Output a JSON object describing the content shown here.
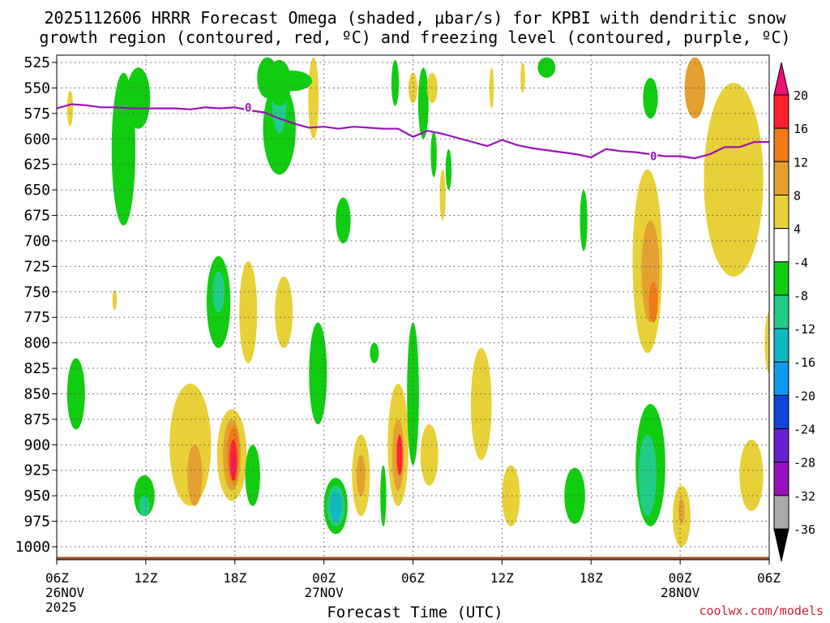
{
  "title_line_1": "2025112606 HRRR Forecast Omega (shaded, μbar/s) for KPBI with dendritic snow",
  "title_line_2": "growth region (contoured, red, ºC) and freezing level (contoured, purple, ºC)",
  "credit": "coolwx.com/models",
  "chart_data": {
    "type": "contour",
    "title": "2025112606 HRRR Forecast Omega (shaded, μbar/s) for KPBI with dendritic snow growth region (contoured, red, ºC) and freezing level (contoured, purple, ºC)",
    "xlabel": "Forecast Time (UTC)",
    "ylabel": "",
    "x_ticks": [
      {
        "hour": 0,
        "label": "06Z",
        "date": "26NOV",
        "year": "2025"
      },
      {
        "hour": 6,
        "label": "12Z"
      },
      {
        "hour": 12,
        "label": "18Z"
      },
      {
        "hour": 18,
        "label": "00Z",
        "date": "27NOV"
      },
      {
        "hour": 24,
        "label": "06Z"
      },
      {
        "hour": 30,
        "label": "12Z"
      },
      {
        "hour": 36,
        "label": "18Z"
      },
      {
        "hour": 42,
        "label": "00Z",
        "date": "28NOV"
      },
      {
        "hour": 48,
        "label": "06Z"
      }
    ],
    "xlim": [
      0,
      48
    ],
    "y_levels": [
      525,
      550,
      575,
      600,
      625,
      650,
      675,
      700,
      725,
      750,
      775,
      800,
      825,
      850,
      875,
      900,
      925,
      950,
      975,
      1000
    ],
    "ylim": [
      1010,
      520
    ],
    "colorbar": {
      "ticks": [
        20,
        16,
        12,
        8,
        4,
        -4,
        -8,
        -12,
        -16,
        -20,
        -24,
        -28,
        -32,
        -36
      ],
      "bins": [
        {
          "range": "16 to 20",
          "color": "#ff2233"
        },
        {
          "range": "12 to 16",
          "color": "#f07a18"
        },
        {
          "range": "8 to 12",
          "color": "#e4a030"
        },
        {
          "range": "4 to 8",
          "color": "#e8d038"
        },
        {
          "range": "-4 to 4",
          "color": "#ffffff"
        },
        {
          "range": "-8 to -4",
          "color": "#11cc11"
        },
        {
          "range": "-12 to -8",
          "color": "#22cc88"
        },
        {
          "range": "-16 to -12",
          "color": "#11b8c0"
        },
        {
          "range": "-20 to -16",
          "color": "#1199ee"
        },
        {
          "range": "-24 to -20",
          "color": "#1144dd"
        },
        {
          "range": "-28 to -24",
          "color": "#6622cc"
        },
        {
          "range": "-32 to -28",
          "color": "#9911bb"
        },
        {
          "range": "-36 to -32",
          "color": "#aaaaaa"
        }
      ],
      "over_color": "#ee1177",
      "under_color": "#000000"
    },
    "freezing_level": {
      "label": "0",
      "color": "#9911bb",
      "hours": [
        0,
        1,
        2,
        3,
        4,
        5,
        6,
        7,
        8,
        9,
        10,
        11,
        12,
        13,
        14,
        15,
        16,
        17,
        18,
        19,
        20,
        21,
        22,
        23,
        24,
        25,
        26,
        27,
        28,
        29,
        30,
        31,
        32,
        33,
        34,
        35,
        36,
        37,
        38,
        39,
        40,
        41,
        42,
        43,
        44,
        45,
        46,
        47,
        48
      ],
      "pressure": [
        570,
        566,
        567,
        569,
        569,
        570,
        570,
        570,
        570,
        571,
        569,
        570,
        569,
        572,
        574,
        580,
        585,
        589,
        588,
        590,
        588,
        589,
        590,
        590,
        598,
        592,
        595,
        599,
        603,
        607,
        601,
        606,
        609,
        611,
        613,
        615,
        618,
        610,
        612,
        613,
        615,
        617,
        617,
        619,
        615,
        608,
        608,
        603,
        603
      ],
      "label_positions": [
        {
          "hour": 12.9,
          "pressure": 569
        },
        {
          "hour": 40.2,
          "pressure": 617
        }
      ]
    },
    "omega_regions": [
      {
        "value": -6,
        "hour": 4.5,
        "pressure": 610,
        "dh": 0.8,
        "dp": 150
      },
      {
        "value": -6,
        "hour": 5.5,
        "pressure": 560,
        "dh": 0.8,
        "dp": 60
      },
      {
        "value": -6,
        "hour": 14.2,
        "pressure": 540,
        "dh": 0.7,
        "dp": 40
      },
      {
        "value": -6,
        "hour": 15.0,
        "pressure": 590,
        "dh": 1.1,
        "dp": 90
      },
      {
        "value": -10,
        "hour": 15.0,
        "pressure": 560,
        "dh": 0.5,
        "dp": 70
      },
      {
        "value": -6,
        "hour": 15.0,
        "pressure": 545,
        "dh": 0.8,
        "dp": 45
      },
      {
        "value": 6,
        "hour": 17.3,
        "pressure": 560,
        "dh": 0.35,
        "dp": 80
      },
      {
        "value": 6,
        "hour": 0.9,
        "pressure": 570,
        "dh": 0.2,
        "dp": 35
      },
      {
        "value": -6,
        "hour": 15.9,
        "pressure": 543,
        "dh": 1.3,
        "dp": 20
      },
      {
        "value": 6,
        "hour": 24.0,
        "pressure": 550,
        "dh": 0.3,
        "dp": 30
      },
      {
        "value": -6,
        "hour": 22.8,
        "pressure": 545,
        "dh": 0.25,
        "dp": 45
      },
      {
        "value": -6,
        "hour": 24.7,
        "pressure": 565,
        "dh": 0.35,
        "dp": 70
      },
      {
        "value": 6,
        "hour": 25.3,
        "pressure": 550,
        "dh": 0.35,
        "dp": 30
      },
      {
        "value": -6,
        "hour": 25.4,
        "pressure": 615,
        "dh": 0.2,
        "dp": 45
      },
      {
        "value": -6,
        "hour": 26.4,
        "pressure": 630,
        "dh": 0.2,
        "dp": 40
      },
      {
        "value": 6,
        "hour": 26.0,
        "pressure": 655,
        "dh": 0.2,
        "dp": 50
      },
      {
        "value": 6,
        "hour": 29.3,
        "pressure": 550,
        "dh": 0.15,
        "dp": 40
      },
      {
        "value": 6,
        "hour": 31.4,
        "pressure": 540,
        "dh": 0.15,
        "dp": 30
      },
      {
        "value": -6,
        "hour": 33.0,
        "pressure": 530,
        "dh": 0.6,
        "dp": 20
      },
      {
        "value": -6,
        "hour": 19.3,
        "pressure": 680,
        "dh": 0.5,
        "dp": 45
      },
      {
        "value": -6,
        "hour": 35.5,
        "pressure": 680,
        "dh": 0.25,
        "dp": 60
      },
      {
        "value": 6,
        "hour": 45.6,
        "pressure": 640,
        "dh": 2.0,
        "dp": 190
      },
      {
        "value": 10,
        "hour": 43.0,
        "pressure": 550,
        "dh": 0.7,
        "dp": 60
      },
      {
        "value": 6,
        "hour": 39.8,
        "pressure": 720,
        "dh": 1.0,
        "dp": 180
      },
      {
        "value": 10,
        "hour": 40.0,
        "pressure": 730,
        "dh": 0.6,
        "dp": 100
      },
      {
        "value": 14,
        "hour": 40.2,
        "pressure": 760,
        "dh": 0.3,
        "dp": 40
      },
      {
        "value": -6,
        "hour": 40.0,
        "pressure": 560,
        "dh": 0.5,
        "dp": 40
      },
      {
        "value": -6,
        "hour": 5.9,
        "pressure": 950,
        "dh": 0.7,
        "dp": 40
      },
      {
        "value": -10,
        "hour": 5.9,
        "pressure": 960,
        "dh": 0.35,
        "dp": 20
      },
      {
        "value": -6,
        "hour": 1.3,
        "pressure": 850,
        "dh": 0.6,
        "dp": 70
      },
      {
        "value": 6,
        "hour": 3.9,
        "pressure": 758,
        "dh": 0.15,
        "dp": 20
      },
      {
        "value": -6,
        "hour": 10.9,
        "pressure": 760,
        "dh": 0.8,
        "dp": 90
      },
      {
        "value": -10,
        "hour": 10.9,
        "pressure": 750,
        "dh": 0.4,
        "dp": 40
      },
      {
        "value": 6,
        "hour": 12.9,
        "pressure": 770,
        "dh": 0.6,
        "dp": 100
      },
      {
        "value": 6,
        "hour": 15.3,
        "pressure": 770,
        "dh": 0.6,
        "dp": 70
      },
      {
        "value": 6,
        "hour": 9.0,
        "pressure": 900,
        "dh": 1.4,
        "dp": 120
      },
      {
        "value": 10,
        "hour": 9.3,
        "pressure": 930,
        "dh": 0.5,
        "dp": 60
      },
      {
        "value": 6,
        "hour": 11.8,
        "pressure": 910,
        "dh": 1.0,
        "dp": 90
      },
      {
        "value": 10,
        "hour": 11.8,
        "pressure": 910,
        "dh": 0.6,
        "dp": 70
      },
      {
        "value": 14,
        "hour": 11.9,
        "pressure": 910,
        "dh": 0.4,
        "dp": 55
      },
      {
        "value": 18,
        "hour": 11.9,
        "pressure": 915,
        "dh": 0.25,
        "dp": 40
      },
      {
        "value": 22,
        "hour": 11.9,
        "pressure": 920,
        "dh": 0.1,
        "dp": 20
      },
      {
        "value": -6,
        "hour": 13.2,
        "pressure": 930,
        "dh": 0.5,
        "dp": 60
      },
      {
        "value": -6,
        "hour": 17.6,
        "pressure": 830,
        "dh": 0.6,
        "dp": 100
      },
      {
        "value": -6,
        "hour": 18.8,
        "pressure": 960,
        "dh": 0.8,
        "dp": 55
      },
      {
        "value": -10,
        "hour": 18.8,
        "pressure": 960,
        "dh": 0.6,
        "dp": 40
      },
      {
        "value": -14,
        "hour": 18.8,
        "pressure": 960,
        "dh": 0.4,
        "dp": 30
      },
      {
        "value": 6,
        "hour": 20.5,
        "pressure": 930,
        "dh": 0.6,
        "dp": 80
      },
      {
        "value": 10,
        "hour": 20.5,
        "pressure": 930,
        "dh": 0.3,
        "dp": 40
      },
      {
        "value": -6,
        "hour": 21.4,
        "pressure": 810,
        "dh": 0.3,
        "dp": 20
      },
      {
        "value": -6,
        "hour": 22.0,
        "pressure": 950,
        "dh": 0.2,
        "dp": 60
      },
      {
        "value": 6,
        "hour": 23.0,
        "pressure": 900,
        "dh": 0.7,
        "dp": 120
      },
      {
        "value": 10,
        "hour": 23.0,
        "pressure": 910,
        "dh": 0.4,
        "dp": 70
      },
      {
        "value": 18,
        "hour": 23.1,
        "pressure": 910,
        "dh": 0.2,
        "dp": 40
      },
      {
        "value": -6,
        "hour": 24.0,
        "pressure": 850,
        "dh": 0.4,
        "dp": 140
      },
      {
        "value": 6,
        "hour": 25.1,
        "pressure": 910,
        "dh": 0.6,
        "dp": 60
      },
      {
        "value": 6,
        "hour": 28.6,
        "pressure": 860,
        "dh": 0.7,
        "dp": 110
      },
      {
        "value": 6,
        "hour": 30.6,
        "pressure": 950,
        "dh": 0.6,
        "dp": 60
      },
      {
        "value": -6,
        "hour": 34.9,
        "pressure": 950,
        "dh": 0.7,
        "dp": 55
      },
      {
        "value": -6,
        "hour": 40.0,
        "pressure": 920,
        "dh": 1.0,
        "dp": 120
      },
      {
        "value": -10,
        "hour": 39.8,
        "pressure": 930,
        "dh": 0.6,
        "dp": 80
      },
      {
        "value": 6,
        "hour": 42.1,
        "pressure": 970,
        "dh": 0.6,
        "dp": 60
      },
      {
        "value": 10,
        "hour": 42.1,
        "pressure": 965,
        "dh": 0.2,
        "dp": 25
      },
      {
        "value": 6,
        "hour": 46.8,
        "pressure": 930,
        "dh": 0.8,
        "dp": 70
      },
      {
        "value": 6,
        "hour": 48.0,
        "pressure": 800,
        "dh": 0.3,
        "dp": 60
      }
    ]
  }
}
